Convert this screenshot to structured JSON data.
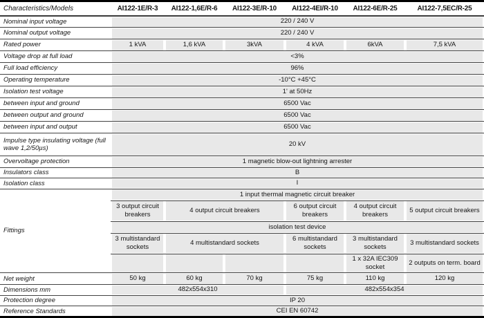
{
  "header": {
    "characteristics_label": "Characteristics/Models",
    "models": [
      "AI122-1E/R-3",
      "AI122-1,6E/R-6",
      "AI122-3E/R-10",
      "AI122-4EI/R-10",
      "AI122-6E/R-25",
      "AI122-7,5EC/R-25"
    ]
  },
  "rows": {
    "nominal_input_voltage": {
      "label": "Nominal input voltage",
      "value": "220 / 240 V"
    },
    "nominal_output_voltage": {
      "label": "Nominal output voltage",
      "value": "220 / 240 V"
    },
    "rated_power": {
      "label": "Rated power",
      "values": [
        "1 kVA",
        "1,6 kVA",
        "3kVA",
        "4 kVA",
        "6kVA",
        "7,5 kVA"
      ]
    },
    "voltage_drop": {
      "label": "Voltage drop at full load",
      "value": "<3%"
    },
    "full_load_efficiency": {
      "label": "Full load efficiency",
      "value": "96%"
    },
    "operating_temperature": {
      "label": "Operating temperature",
      "value": "-10°C +45°C"
    },
    "isolation_test_voltage": {
      "label": "Isolation test voltage",
      "value": "1' at 50Hz"
    },
    "between_input_ground": {
      "label": "between input and ground",
      "value": "6500 Vac"
    },
    "between_output_ground": {
      "label": "between output and ground",
      "value": "6500 Vac"
    },
    "between_input_output": {
      "label": "between input and output",
      "value": "6500 Vac"
    },
    "impulse_voltage": {
      "label": "Impulse type insulating voltage (full wave 1,2/50µs)",
      "value": "20 kV"
    },
    "overvoltage_protection": {
      "label": "Overvoltage protection",
      "value": "1 magnetic blow-out lightning arrester"
    },
    "insulators_class": {
      "label": "Insulators class",
      "value": "B"
    },
    "isolation_class": {
      "label": "Isolation class",
      "value": "I"
    },
    "fittings": {
      "label": "Fittings",
      "input_breaker": "1 input thermal magnetic circuit breaker",
      "output_breakers": [
        "3 output circuit breakers",
        "4 output circuit breakers",
        "6 output circuit breakers",
        "4 output circuit breakers",
        "5 output circuit breakers"
      ],
      "isolation_test_device": "isolation test device",
      "sockets": [
        "3 multistandard sockets",
        "4 multistandard sockets",
        "6 multistandard sockets",
        "3 multistandard sockets",
        "3 multistandard sockets"
      ],
      "extra_outputs": [
        "",
        "",
        "",
        "",
        "1 x 32A IEC309 socket",
        "2 outputs on term. board"
      ]
    },
    "net_weight": {
      "label": "Net weight",
      "values": [
        "50 kg",
        "60 kg",
        "70 kg",
        "75 kg",
        "110 kg",
        "120 kg"
      ]
    },
    "dimensions": {
      "label": "Dimensions mm",
      "values": [
        "482x554x310",
        "482x554x354"
      ]
    },
    "protection_degree": {
      "label": "Protection degree",
      "value": "IP 20"
    },
    "reference_standards": {
      "label": "Reference Standards",
      "value": "CEI EN 60742"
    }
  }
}
